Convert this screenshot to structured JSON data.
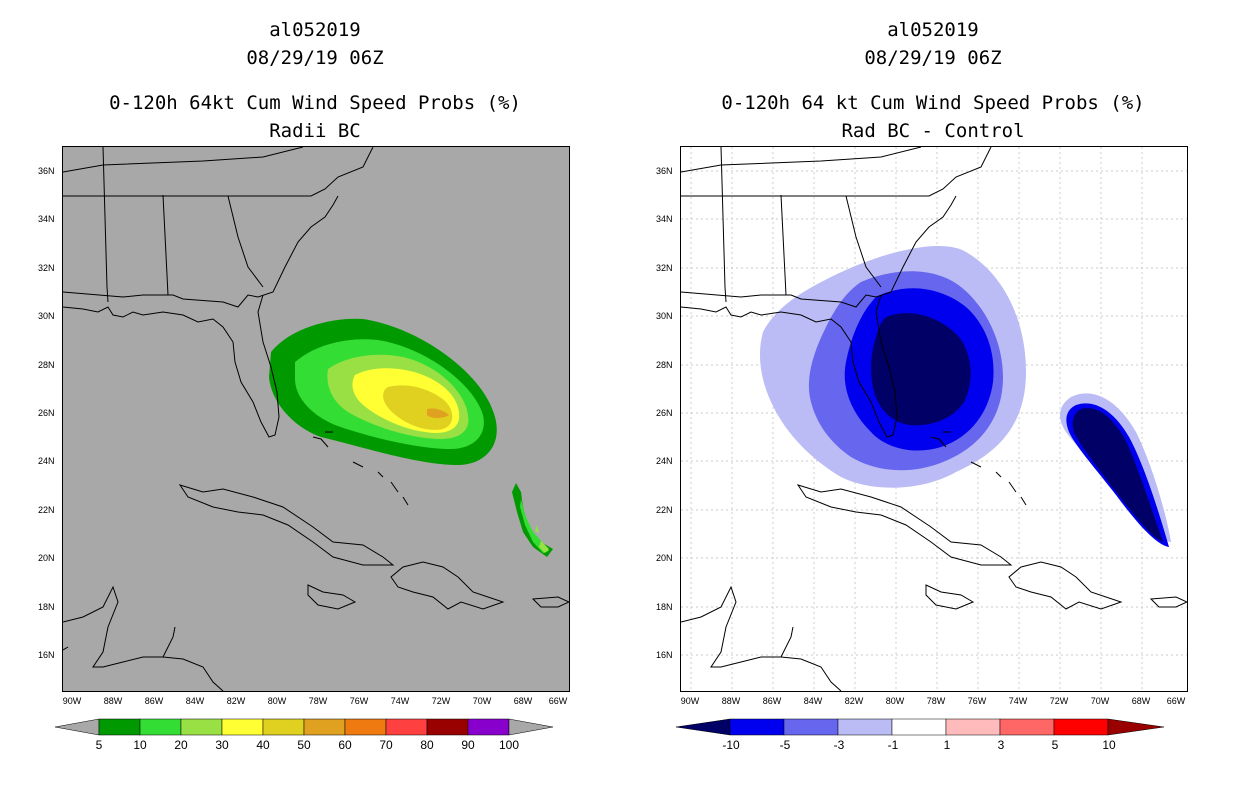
{
  "left": {
    "title1": "al052019",
    "title2": "08/29/19 06Z",
    "title3": "0-120h 64kt Cum Wind Speed Probs (%)",
    "title4": "Radii BC",
    "colorbar": {
      "labels": [
        "5",
        "10",
        "20",
        "30",
        "40",
        "50",
        "60",
        "70",
        "80",
        "90",
        "100"
      ],
      "colors": [
        "#009900",
        "#33dd33",
        "#99e044",
        "#ffff33",
        "#e0d020",
        "#e0a020",
        "#ee7a10",
        "#ff4040",
        "#990000",
        "#8800cc"
      ]
    },
    "background": "#a8a8a8"
  },
  "right": {
    "title1": "al052019",
    "title2": "08/29/19 06Z",
    "title3": "0-120h 64 kt Cum Wind Speed Probs (%)",
    "title4": "Rad BC - Control",
    "colorbar": {
      "labels": [
        "-10",
        "-5",
        "-3",
        "-1",
        "1",
        "3",
        "5",
        "10"
      ],
      "colors": [
        "#000066",
        "#0000ee",
        "#6666ee",
        "#bbbbf5",
        "#ffffff",
        "#ffbbbb",
        "#ff6666",
        "#ff0000",
        "#990000"
      ]
    },
    "background": "#ffffff"
  },
  "axes": {
    "lat_labels": [
      "36N",
      "34N",
      "32N",
      "30N",
      "28N",
      "26N",
      "24N",
      "22N",
      "20N",
      "18N",
      "16N"
    ],
    "lon_labels": [
      "90W",
      "88W",
      "86W",
      "84W",
      "82W",
      "80W",
      "78W",
      "76W",
      "74W",
      "72W",
      "70W",
      "68W",
      "66W"
    ]
  }
}
